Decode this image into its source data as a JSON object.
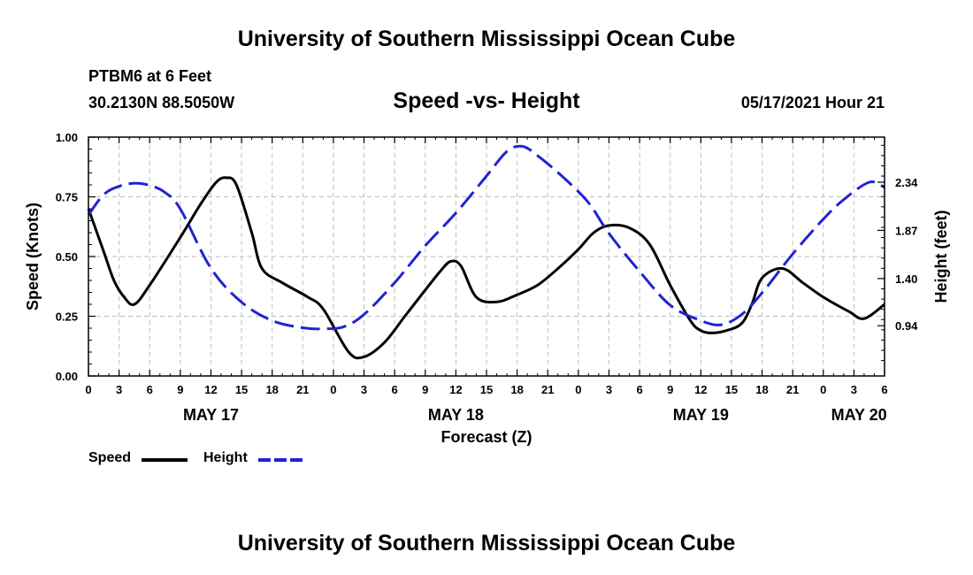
{
  "header": {
    "title": "University of Southern Mississippi Ocean Cube",
    "station": "PTBM6 at 6 Feet",
    "coords": "30.2130N  88.5050W",
    "datetime": "05/17/2021 Hour 21"
  },
  "footer": {
    "title": "University of Southern Mississippi Ocean Cube"
  },
  "chart_data": {
    "type": "line",
    "title": "Speed -vs- Height",
    "xlabel": "Forecast (Z)",
    "ylabel": "Speed (Knots)",
    "y2label": "Height (feet)",
    "x_hour_range": [
      0,
      78
    ],
    "ylim": [
      0,
      1
    ],
    "y2lim": [
      0.45,
      2.78
    ],
    "x_tick_labels": [
      "0",
      "3",
      "6",
      "9",
      "12",
      "15",
      "18",
      "21",
      "0",
      "3",
      "6",
      "9",
      "12",
      "15",
      "18",
      "21",
      "0",
      "3",
      "6",
      "9",
      "12",
      "15",
      "18",
      "21",
      "0",
      "3",
      "6"
    ],
    "date_labels": [
      {
        "label": "MAY 17",
        "hour": 12
      },
      {
        "label": "MAY 18",
        "hour": 36
      },
      {
        "label": "MAY 19",
        "hour": 60
      },
      {
        "label": "MAY 20",
        "hour": 75.5
      }
    ],
    "y_ticks": [
      "0.00",
      "0.25",
      "0.50",
      "0.75",
      "1.00"
    ],
    "y2_ticks": [
      "0.94",
      "1.40",
      "1.87",
      "2.34"
    ],
    "grid": true,
    "series": [
      {
        "name": "Speed",
        "axis": "left",
        "color": "#000000",
        "style": "solid",
        "x": [
          0,
          1.5,
          2.5,
          3.5,
          4.5,
          6,
          9,
          11,
          12.5,
          13.5,
          14.5,
          16,
          17,
          19,
          21.5,
          23,
          25.5,
          27,
          29,
          31,
          33,
          34.5,
          35.5,
          36.5,
          38,
          40,
          42,
          44,
          46,
          48,
          49.5,
          51,
          53,
          55,
          57,
          59,
          60,
          61,
          62.5,
          64,
          65,
          66,
          68,
          70,
          72,
          74.5,
          76,
          78
        ],
        "values": [
          0.7,
          0.52,
          0.4,
          0.33,
          0.3,
          0.38,
          0.58,
          0.72,
          0.81,
          0.83,
          0.8,
          0.6,
          0.45,
          0.39,
          0.33,
          0.28,
          0.1,
          0.08,
          0.14,
          0.25,
          0.36,
          0.44,
          0.48,
          0.46,
          0.33,
          0.31,
          0.34,
          0.38,
          0.45,
          0.53,
          0.6,
          0.63,
          0.62,
          0.55,
          0.38,
          0.23,
          0.19,
          0.18,
          0.19,
          0.22,
          0.3,
          0.41,
          0.45,
          0.39,
          0.33,
          0.27,
          0.24,
          0.3
        ]
      },
      {
        "name": "Height",
        "axis": "right",
        "color": "#1f24d0",
        "style": "dashed",
        "x": [
          0,
          1.5,
          3,
          4.5,
          6,
          7.5,
          9,
          12,
          15,
          18,
          21,
          23,
          25,
          27,
          30,
          33,
          36,
          39,
          41,
          42.5,
          44,
          46.5,
          49,
          51,
          54,
          57,
          60,
          62,
          64,
          66,
          69,
          72,
          74,
          76.5,
          78
        ],
        "values": [
          2.02,
          2.22,
          2.3,
          2.33,
          2.31,
          2.24,
          2.08,
          1.5,
          1.17,
          0.99,
          0.92,
          0.91,
          0.93,
          1.05,
          1.36,
          1.72,
          2.04,
          2.4,
          2.64,
          2.69,
          2.6,
          2.39,
          2.14,
          1.84,
          1.47,
          1.14,
          0.99,
          0.95,
          1.05,
          1.26,
          1.64,
          1.98,
          2.17,
          2.34,
          2.29
        ]
      }
    ]
  }
}
